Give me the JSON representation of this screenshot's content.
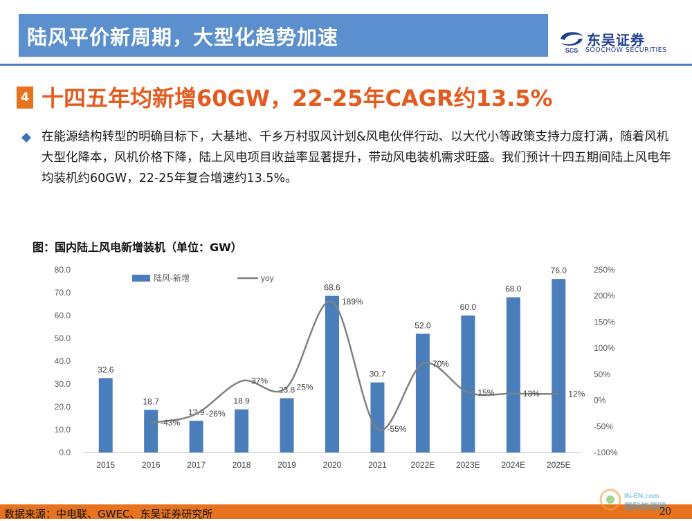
{
  "header": {
    "title": "陆风平价新周期，大型化趋势加速",
    "logo_cn": "东吴证券",
    "logo_en": "SOOCHOW SECURITIES",
    "logo_mark": "SCS"
  },
  "section": {
    "number": "4",
    "title": "十四五年均新增60GW，22-25年CAGR约13.5%"
  },
  "body": {
    "paragraph": "在能源结构转型的明确目标下，大基地、千乡万村驭风计划&风电伙伴行动、以大代小等政策支持力度打满，随着风机大型化降本，风机价格下降，陆上风电项目收益率显著提升，带动风电装机需求旺盛。我们预计十四五期间陆上风电年均装机约60GW，22-25年复合增速约13.5%。"
  },
  "chart_title": "图：国内陆上风电新增装机（单位：GW）",
  "chart_data": {
    "type": "bar",
    "categories": [
      "2015",
      "2016",
      "2017",
      "2018",
      "2019",
      "2020",
      "2021",
      "2022E",
      "2023E",
      "2024E",
      "2025E"
    ],
    "series": [
      {
        "name": "陆风-新增",
        "type": "bar",
        "color": "#4a7ebb",
        "values": [
          32.6,
          18.7,
          13.9,
          18.9,
          23.8,
          68.6,
          30.7,
          52.0,
          60.0,
          68.0,
          76.0
        ],
        "labels": [
          "32.6",
          "18.7",
          "13.9",
          "18.9",
          "23.8",
          "68.6",
          "30.7",
          "52.0",
          "60.0",
          "68.0",
          "76.0"
        ]
      },
      {
        "name": "yoy",
        "type": "line",
        "axis": "right",
        "color": "#808080",
        "values": [
          null,
          -43,
          -26,
          37,
          25,
          189,
          -55,
          70,
          15,
          13,
          12
        ],
        "labels": [
          "",
          "-43%",
          "-26%",
          "37%",
          "25%",
          "189%",
          "-55%",
          "70%",
          "15%",
          "13%",
          "12%"
        ]
      }
    ],
    "ylim": [
      0,
      80
    ],
    "y_ticks": [
      "0.0",
      "10.0",
      "20.0",
      "30.0",
      "40.0",
      "50.0",
      "60.0",
      "70.0",
      "80.0"
    ],
    "y2lim": [
      -100,
      250
    ],
    "y2_ticks": [
      "-100%",
      "-50%",
      "0%",
      "50%",
      "100%",
      "150%",
      "200%",
      "250%"
    ],
    "legend_position": "top-left",
    "grid": false
  },
  "footer": {
    "source": "数据来源：中电联、GWEC、东吴证券研究所",
    "page": "20",
    "watermark_top": "IN-EN.com",
    "watermark_bottom": "国际能源网"
  }
}
